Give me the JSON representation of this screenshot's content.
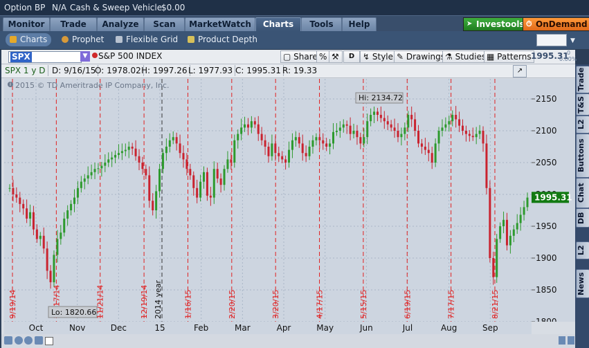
{
  "account": {
    "name": "Option BP",
    "value": "N/A",
    "sweep": "Cash & Sweep Vehicle",
    "amount": "$0.00"
  },
  "nav": {
    "tabs": [
      "Monitor",
      "Trade",
      "Analyze",
      "Scan",
      "MarketWatch",
      "Charts",
      "Tools",
      "Help"
    ],
    "active": "Charts",
    "investools": "Investools",
    "ondemand": "OnDemand"
  },
  "subnav": {
    "items": [
      "Charts",
      "Prophet",
      "Flexible Grid",
      "Product Depth"
    ]
  },
  "toolbar": {
    "symbol": "SPX",
    "description": "S&P 500 INDEX",
    "share": "Share",
    "style": "Style",
    "drawings": "Drawings",
    "studies": "Studies",
    "patterns": "Patterns",
    "d_label": "D",
    "last": "1995.31",
    "change_top": "0",
    "change_bottom": "0.00%"
  },
  "infobar": {
    "period": "SPX 1 y D",
    "date": "D: 9/16/15",
    "open": "O: 1978.02",
    "high": "H: 1997.26",
    "low": "L: 1977.93",
    "close": "C: 1995.31",
    "range": "R: 19.33"
  },
  "side_tabs": [
    "Trade",
    "T&S",
    "L2",
    "Buttons",
    "Chat",
    "DB",
    "L2",
    "News"
  ],
  "colors": {
    "up": "#2d9a2d",
    "down": "#c9232f",
    "marker": "#e02020",
    "year": "#333333",
    "price_tag": "#127a12"
  },
  "chart_data": {
    "type": "candlestick",
    "watermark": "2015 © TD Ameritrade IP Company, Inc.",
    "ylim": [
      1800,
      2175
    ],
    "yticks": [
      "2150",
      "2100",
      "2050",
      "2000",
      "1950",
      "1900",
      "1850",
      "1800"
    ],
    "months": [
      "Oct",
      "Nov",
      "Dec",
      "15",
      "Feb",
      "Mar",
      "Apr",
      "May",
      "Jun",
      "Jul",
      "Aug",
      "Sep"
    ],
    "event_dates": [
      "9/19/14",
      "10/17/14",
      "11/21/14",
      "12/19/14",
      "1/16/15",
      "2/20/15",
      "3/20/15",
      "4/17/15",
      "5/15/15",
      "6/19/15",
      "7/17/15",
      "8/21/15"
    ],
    "year_label": "2014 year",
    "hi_label": "Hi: 2134.72",
    "lo_label": "Lo: 1820.66",
    "last_price": "1995.31",
    "closes": [
      2010,
      2000,
      1995,
      1985,
      1978,
      1962,
      1972,
      1945,
      1930,
      1935,
      1915,
      1880,
      1862,
      1905,
      1930,
      1940,
      1962,
      1975,
      1985,
      1995,
      2010,
      2020,
      2025,
      2030,
      2035,
      2040,
      2041,
      2045,
      2050,
      2055,
      2058,
      2062,
      2065,
      2068,
      2070,
      2075,
      2072,
      2060,
      2050,
      2040,
      2030,
      1990,
      1975,
      2005,
      2040,
      2065,
      2075,
      2085,
      2090,
      2080,
      2065,
      2055,
      2040,
      2030,
      2010,
      1995,
      2020,
      2035,
      1998,
      1995,
      2040,
      2025,
      2015,
      2040,
      2055,
      2050,
      2085,
      2095,
      2105,
      2110,
      2105,
      2115,
      2110,
      2095,
      2085,
      2075,
      2060,
      2080,
      2065,
      2060,
      2055,
      2050,
      2070,
      2085,
      2090,
      2080,
      2065,
      2060,
      2075,
      2085,
      2090,
      2085,
      2080,
      2075,
      2080,
      2098,
      2100,
      2105,
      2110,
      2108,
      2095,
      2100,
      2090,
      2080,
      2090,
      2115,
      2125,
      2130,
      2125,
      2120,
      2115,
      2110,
      2105,
      2100,
      2090,
      2095,
      2105,
      2125,
      2118,
      2100,
      2080,
      2075,
      2070,
      2065,
      2050,
      2080,
      2100,
      2105,
      2110,
      2115,
      2125,
      2118,
      2108,
      2100,
      2095,
      2092,
      2090,
      2095,
      2100,
      2080,
      2010,
      1900,
      1870,
      1930,
      1950,
      1960,
      1920,
      1935,
      1945,
      1955,
      1968,
      1980,
      1995
    ]
  }
}
